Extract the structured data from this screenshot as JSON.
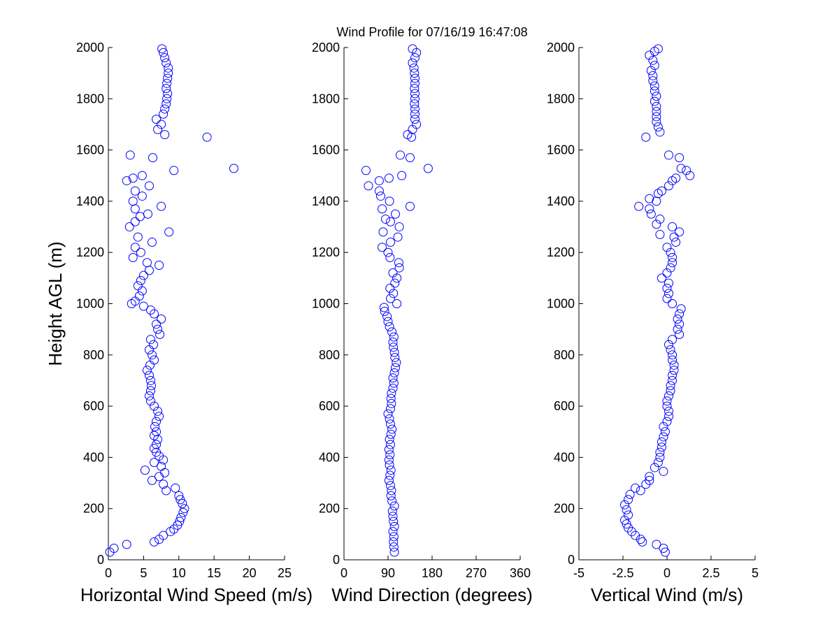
{
  "chart_data": [
    {
      "type": "scatter",
      "xlabel": "Horizontal Wind Speed (m/s)",
      "ylabel": "Height AGL (m)",
      "color": "#0000ff",
      "xlim": [
        0,
        25
      ],
      "xticks": [
        0,
        5,
        10,
        15,
        20,
        25
      ],
      "ylim": [
        0,
        2000
      ],
      "yticks": [
        0,
        200,
        400,
        600,
        800,
        1000,
        1200,
        1400,
        1600,
        1800,
        2000
      ],
      "x": [
        0.2,
        0.8,
        2.6,
        6.5,
        7.2,
        7.8,
        8.8,
        9.3,
        9.8,
        10.1,
        10.3,
        10.6,
        10.8,
        10.5,
        10.2,
        10.0,
        8.2,
        9.5,
        7.8,
        6.2,
        7.2,
        8.0,
        5.2,
        7.5,
        6.5,
        7.8,
        7.2,
        6.8,
        6.5,
        6.8,
        7.0,
        6.5,
        6.8,
        6.6,
        6.8,
        7.2,
        7.0,
        6.5,
        6.0,
        5.8,
        6.0,
        6.1,
        6.0,
        5.8,
        5.5,
        5.9,
        6.5,
        6.2,
        5.8,
        6.4,
        6.0,
        7.3,
        7.0,
        6.8,
        7.5,
        6.5,
        6.0,
        5.0,
        3.3,
        3.8,
        4.4,
        4.8,
        4.2,
        4.6,
        5.0,
        5.8,
        7.2,
        5.5,
        3.5,
        4.6,
        3.8,
        6.2,
        4.2,
        8.6,
        3.0,
        3.8,
        4.5,
        5.6,
        3.8,
        7.5,
        3.5,
        4.8,
        3.8,
        5.8,
        2.6,
        3.5,
        4.8,
        9.3,
        17.8,
        6.3,
        3.1,
        14.0,
        8.0,
        7.0,
        7.5,
        6.8,
        7.8,
        8.0,
        8.2,
        8.3,
        8.4,
        8.2,
        8.3,
        8.4,
        8.5,
        8.5,
        8.2,
        8.0,
        7.8,
        7.6
      ],
      "y": [
        30,
        45,
        60,
        70,
        80,
        95,
        110,
        120,
        135,
        150,
        165,
        185,
        200,
        220,
        235,
        250,
        270,
        280,
        295,
        310,
        325,
        340,
        350,
        365,
        380,
        390,
        405,
        420,
        435,
        450,
        470,
        485,
        500,
        520,
        540,
        560,
        580,
        600,
        620,
        640,
        660,
        680,
        700,
        720,
        740,
        760,
        780,
        800,
        820,
        840,
        860,
        880,
        900,
        920,
        940,
        960,
        975,
        990,
        1000,
        1010,
        1030,
        1050,
        1070,
        1090,
        1110,
        1130,
        1150,
        1160,
        1180,
        1200,
        1220,
        1240,
        1260,
        1280,
        1300,
        1320,
        1340,
        1350,
        1370,
        1380,
        1400,
        1420,
        1440,
        1460,
        1480,
        1490,
        1500,
        1520,
        1528,
        1570,
        1580,
        1650,
        1660,
        1680,
        1700,
        1720,
        1740,
        1760,
        1780,
        1800,
        1820,
        1840,
        1860,
        1880,
        1900,
        1920,
        1940,
        1960,
        1980,
        1995
      ]
    },
    {
      "type": "scatter",
      "title": "Wind Profile for  07/16/19 16:47:08",
      "xlabel": "Wind Direction (degrees)",
      "color": "#0000ff",
      "xlim": [
        0,
        360
      ],
      "xticks": [
        0,
        90,
        180,
        270,
        360
      ],
      "ylim": [
        0,
        2000
      ],
      "yticks": [
        0,
        200,
        400,
        600,
        800,
        1000,
        1200,
        1400,
        1600,
        1800,
        2000
      ],
      "x": [
        103,
        102,
        101,
        102,
        100,
        103,
        101,
        100,
        99,
        103,
        98,
        96,
        97,
        95,
        92,
        94,
        96,
        93,
        92,
        94,
        92,
        95,
        93,
        96,
        98,
        95,
        93,
        90,
        95,
        97,
        96,
        97,
        100,
        102,
        100,
        103,
        105,
        107,
        104,
        103,
        101,
        100,
        102,
        98,
        93,
        90,
        88,
        83,
        82,
        108,
        95,
        101,
        94,
        104,
        108,
        100,
        113,
        112,
        94,
        90,
        78,
        95,
        110,
        80,
        113,
        95,
        85,
        105,
        78,
        135,
        93,
        75,
        72,
        50,
        72,
        92,
        118,
        45,
        172,
        135,
        115,
        138,
        130,
        140,
        148,
        145,
        145,
        145,
        144,
        145,
        145,
        144,
        145,
        145,
        144,
        143,
        140,
        145,
        148,
        140
      ],
      "y": [
        30,
        50,
        70,
        90,
        110,
        130,
        150,
        170,
        190,
        210,
        230,
        250,
        270,
        290,
        310,
        330,
        350,
        370,
        390,
        410,
        430,
        450,
        470,
        490,
        510,
        530,
        550,
        570,
        590,
        610,
        630,
        650,
        670,
        690,
        710,
        730,
        750,
        770,
        790,
        810,
        830,
        850,
        870,
        890,
        910,
        930,
        950,
        970,
        985,
        1000,
        1020,
        1040,
        1060,
        1080,
        1100,
        1120,
        1140,
        1160,
        1180,
        1200,
        1220,
        1240,
        1260,
        1280,
        1300,
        1320,
        1330,
        1350,
        1370,
        1380,
        1400,
        1420,
        1440,
        1460,
        1480,
        1490,
        1500,
        1520,
        1528,
        1570,
        1580,
        1650,
        1660,
        1680,
        1700,
        1720,
        1740,
        1760,
        1780,
        1800,
        1820,
        1840,
        1860,
        1880,
        1900,
        1920,
        1940,
        1960,
        1980,
        1995
      ]
    },
    {
      "type": "scatter",
      "xlabel": "Vertical Wind (m/s)",
      "color": "#0000ff",
      "xlim": [
        -5,
        5
      ],
      "xticks": [
        -5,
        -2.5,
        0,
        2.5,
        5
      ],
      "ylim": [
        0,
        2000
      ],
      "yticks": [
        0,
        200,
        400,
        600,
        800,
        1000,
        1200,
        1400,
        1600,
        1800,
        2000
      ],
      "x": [
        -0.1,
        -0.2,
        -0.6,
        -1.4,
        -1.5,
        -1.8,
        -2.0,
        -2.2,
        -2.3,
        -2.4,
        -2.2,
        -2.3,
        -2.4,
        -2.2,
        -2.1,
        -1.5,
        -1.8,
        -1.2,
        -1.0,
        -1.0,
        -0.2,
        -0.7,
        -0.5,
        -0.4,
        -0.4,
        -0.3,
        -0.3,
        -0.2,
        -0.1,
        -0.2,
        0.0,
        0.1,
        0.1,
        0.0,
        0.0,
        0.1,
        0.2,
        0.2,
        0.3,
        0.3,
        0.4,
        0.4,
        0.3,
        0.3,
        0.2,
        0.1,
        0.3,
        0.7,
        0.6,
        0.7,
        0.6,
        0.7,
        0.8,
        0.3,
        0.0,
        0.1,
        0.0,
        0.1,
        -0.3,
        0.0,
        0.2,
        0.3,
        0.3,
        0.2,
        0.0,
        0.5,
        0.4,
        -0.4,
        0.7,
        0.3,
        -0.6,
        -0.4,
        -0.9,
        -1.0,
        -1.6,
        -0.6,
        -1.0,
        -0.5,
        -0.3,
        0.1,
        0.3,
        0.5,
        1.3,
        1.1,
        0.8,
        0.7,
        0.1,
        -1.2,
        -0.4,
        -0.5,
        -0.6,
        -0.6,
        -0.6,
        -0.6,
        -0.7,
        -0.6,
        -0.7,
        -0.7,
        -0.8,
        -0.8,
        -0.9,
        -0.7,
        -0.8,
        -1.0,
        -0.7,
        -0.5
      ],
      "y": [
        30,
        45,
        60,
        70,
        80,
        95,
        110,
        125,
        140,
        155,
        175,
        195,
        215,
        235,
        255,
        270,
        280,
        295,
        310,
        325,
        345,
        360,
        380,
        400,
        420,
        440,
        460,
        480,
        500,
        520,
        540,
        560,
        580,
        600,
        620,
        640,
        660,
        680,
        700,
        720,
        740,
        760,
        780,
        800,
        820,
        840,
        860,
        880,
        900,
        920,
        940,
        960,
        980,
        1000,
        1020,
        1040,
        1060,
        1080,
        1100,
        1120,
        1140,
        1160,
        1180,
        1200,
        1220,
        1240,
        1260,
        1270,
        1280,
        1300,
        1310,
        1330,
        1350,
        1370,
        1380,
        1400,
        1410,
        1430,
        1440,
        1460,
        1480,
        1490,
        1500,
        1520,
        1528,
        1570,
        1580,
        1650,
        1670,
        1690,
        1710,
        1730,
        1750,
        1770,
        1790,
        1810,
        1830,
        1850,
        1870,
        1890,
        1910,
        1930,
        1950,
        1970,
        1985,
        1995
      ]
    }
  ]
}
